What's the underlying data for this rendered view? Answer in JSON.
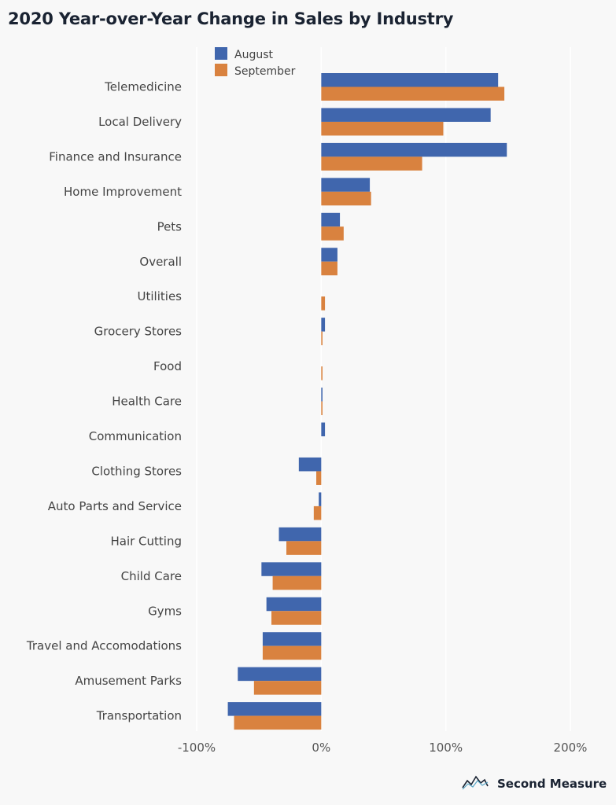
{
  "title": "2020 Year-over-Year Change in Sales by Industry",
  "brand": {
    "name": "Second Measure",
    "icon": "second-measure-logo-icon"
  },
  "colors": {
    "august": "#4066ad",
    "september": "#d9823f",
    "grid": "#ffffff",
    "background": "#f8f8f8"
  },
  "chart_data": {
    "type": "bar",
    "orientation": "horizontal",
    "categories": [
      "Telemedicine",
      "Local Delivery",
      "Finance and Insurance",
      "Home Improvement",
      "Pets",
      "Overall",
      "Utilities",
      "Grocery Stores",
      "Food",
      "Health Care",
      "Communication",
      "Clothing Stores",
      "Auto Parts and Service",
      "Hair Cutting",
      "Child Care",
      "Gyms",
      "Travel and Accomodations",
      "Amusement Parks",
      "Transportation"
    ],
    "series": [
      {
        "name": "August",
        "values": [
          142,
          136,
          149,
          39,
          15,
          13,
          0,
          3,
          0,
          1,
          3,
          -18,
          -2,
          -34,
          -48,
          -44,
          -47,
          -67,
          -75
        ]
      },
      {
        "name": "September",
        "values": [
          147,
          98,
          81,
          40,
          18,
          13,
          3,
          1,
          1,
          1,
          0,
          -4,
          -6,
          -28,
          -39,
          -40,
          -47,
          -54,
          -70
        ]
      }
    ],
    "xlim": [
      -100,
      200
    ],
    "xticks": [
      "-100%",
      "0%",
      "100%",
      "200%"
    ],
    "xtick_values": [
      -100,
      0,
      100,
      200
    ],
    "grid": true,
    "legend_position": "top"
  }
}
